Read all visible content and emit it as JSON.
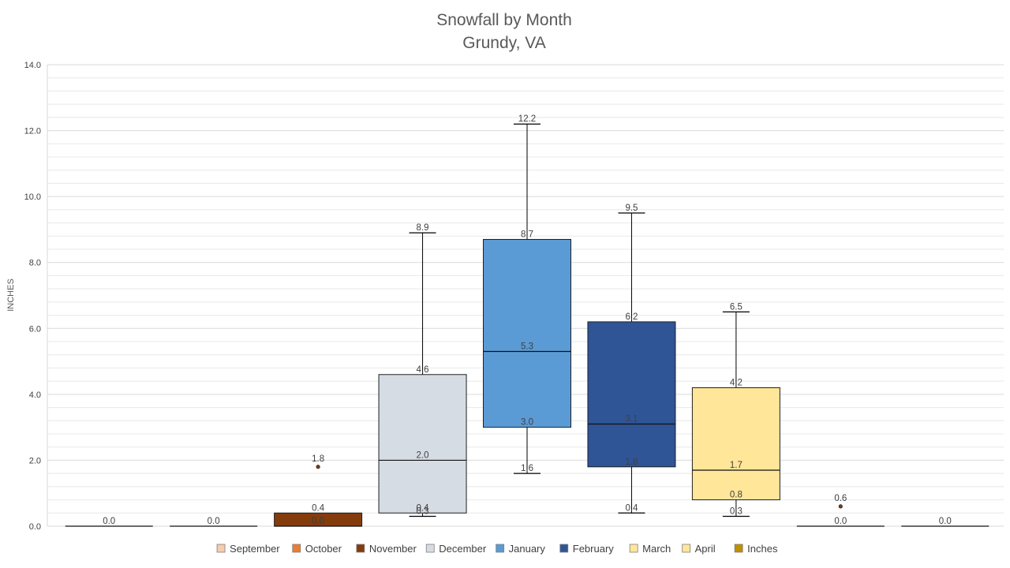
{
  "chart_data": {
    "type": "boxplot",
    "title": "Snowfall by Month",
    "subtitle": "Grundy, VA",
    "ylabel": "INCHES",
    "ylim": [
      0,
      14
    ],
    "yticks": [
      "0.0",
      "2.0",
      "4.0",
      "6.0",
      "8.0",
      "10.0",
      "12.0",
      "14.0"
    ],
    "grid": true,
    "legend_position": "bottom",
    "legend": [
      {
        "name": "September",
        "color": "#F8CBAD"
      },
      {
        "name": "October",
        "color": "#ED7D31"
      },
      {
        "name": "November",
        "color": "#843C0C"
      },
      {
        "name": "December",
        "color": "#D6DCE4"
      },
      {
        "name": "January",
        "color": "#5B9BD5"
      },
      {
        "name": "February",
        "color": "#2F5597"
      },
      {
        "name": "March",
        "color": "#FFE699"
      },
      {
        "name": "April",
        "color": "#FFE699"
      },
      {
        "name": "Inches",
        "color": "#BF9000"
      }
    ],
    "boxes": [
      {
        "name": "September",
        "color": "#F8CBAD",
        "min": 0,
        "q1": 0,
        "median": 0,
        "q3": 0,
        "max": 0,
        "labels": [
          "0.0"
        ],
        "outliers": []
      },
      {
        "name": "October",
        "color": "#ED7D31",
        "min": 0,
        "q1": 0,
        "median": 0,
        "q3": 0,
        "max": 0,
        "labels": [
          "0.0"
        ],
        "outliers": []
      },
      {
        "name": "November",
        "color": "#843C0C",
        "min": 0,
        "q1": 0,
        "median": 0,
        "q3": 0.4,
        "max": 0.4,
        "labels": [
          "0.0",
          "0.0",
          "0.4"
        ],
        "outliers": [
          {
            "value": 1.8,
            "label": "1.8"
          }
        ]
      },
      {
        "name": "December",
        "color": "#D6DCE4",
        "min": 0.3,
        "q1": 0.4,
        "median": 2.0,
        "q3": 4.6,
        "max": 8.9,
        "labels": [
          "0.3",
          "0.4",
          "2.0",
          "4.6",
          "8.9"
        ],
        "outliers": []
      },
      {
        "name": "January",
        "color": "#5B9BD5",
        "min": 1.6,
        "q1": 3.0,
        "median": 5.3,
        "q3": 8.7,
        "max": 12.2,
        "labels": [
          "1.6",
          "3.0",
          "5.3",
          "8.7",
          "12.2"
        ],
        "outliers": []
      },
      {
        "name": "February",
        "color": "#2F5597",
        "min": 0.4,
        "q1": 1.8,
        "median": 3.1,
        "q3": 6.2,
        "max": 9.5,
        "labels": [
          "0.4",
          "1.8",
          "3.1",
          "6.2",
          "9.5"
        ],
        "outliers": []
      },
      {
        "name": "March",
        "color": "#FFE699",
        "min": 0.3,
        "q1": 0.8,
        "median": 1.7,
        "q3": 4.2,
        "max": 6.5,
        "labels": [
          "0.3",
          "0.8",
          "1.7",
          "4.2",
          "6.5"
        ],
        "outliers": []
      },
      {
        "name": "April",
        "color": "#FFE699",
        "min": 0,
        "q1": 0,
        "median": 0,
        "q3": 0,
        "max": 0,
        "labels": [
          "0.0"
        ],
        "outliers": [
          {
            "value": 0.6,
            "label": "0.6"
          }
        ]
      },
      {
        "name": "Inches",
        "color": "#BF9000",
        "min": 0,
        "q1": 0,
        "median": 0,
        "q3": 0,
        "max": 0,
        "labels": [
          "0.0"
        ],
        "outliers": []
      }
    ]
  }
}
